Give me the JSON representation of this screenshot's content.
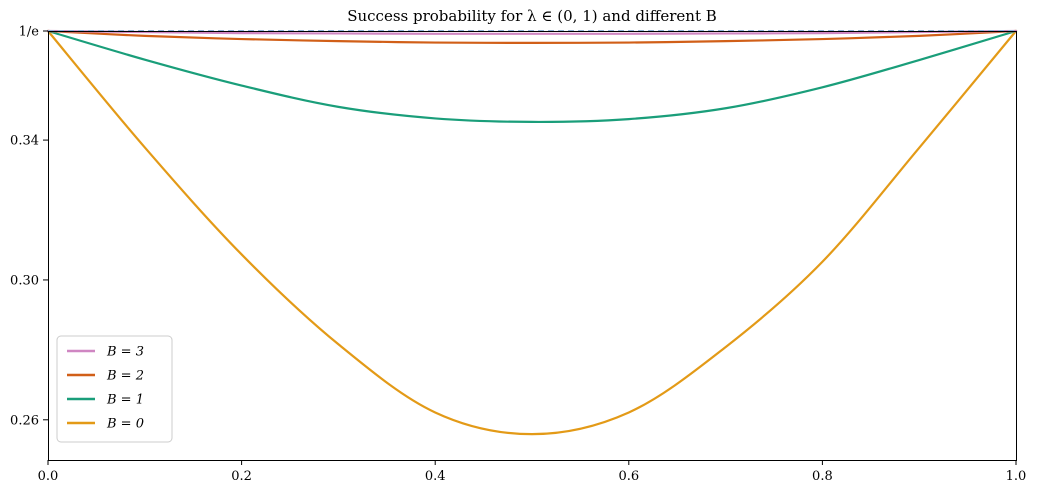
{
  "chart_data": {
    "type": "line",
    "title": "Success probability for λ ∈ (0, 1) and different B",
    "xlabel": "",
    "ylabel": "",
    "xlim": [
      0.0,
      1.0
    ],
    "ylim": [
      0.2452,
      0.3679
    ],
    "x_ticks": [
      {
        "value": 0.0,
        "label": "0.0"
      },
      {
        "value": 0.2,
        "label": "0.2"
      },
      {
        "value": 0.4,
        "label": "0.4"
      },
      {
        "value": 0.6,
        "label": "0.6"
      },
      {
        "value": 0.8,
        "label": "0.8"
      },
      {
        "value": 1.0,
        "label": "1.0"
      }
    ],
    "y_ticks": [
      {
        "value": 0.2567,
        "label": "0.26"
      },
      {
        "value": 0.2967,
        "label": "0.30"
      },
      {
        "value": 0.3367,
        "label": "0.34"
      },
      {
        "value": 0.3679,
        "label": "1/e"
      }
    ],
    "grid": false,
    "legend_position": "lower-left",
    "reference_line": {
      "y": 0.3679,
      "color": "#8fb3d9",
      "style": "dashed"
    },
    "series": [
      {
        "name": "B = 3",
        "color": "#cf86c2",
        "x": [
          0,
          0.1,
          0.2,
          0.3,
          0.4,
          0.5,
          0.6,
          0.7,
          0.8,
          0.9,
          1.0
        ],
        "values": [
          0.3679,
          0.3676,
          0.3673,
          0.3672,
          0.3671,
          0.3671,
          0.3671,
          0.3672,
          0.3673,
          0.3676,
          0.3679
        ]
      },
      {
        "name": "B = 2",
        "color": "#d15f18",
        "x": [
          0,
          0.1,
          0.2,
          0.3,
          0.4,
          0.5,
          0.6,
          0.7,
          0.8,
          0.9,
          1.0
        ],
        "values": [
          0.3679,
          0.3665,
          0.3656,
          0.365,
          0.3646,
          0.3645,
          0.3646,
          0.365,
          0.3656,
          0.3665,
          0.3679
        ]
      },
      {
        "name": "B = 1",
        "color": "#1a9e7a",
        "x": [
          0,
          0.1,
          0.2,
          0.3,
          0.4,
          0.5,
          0.6,
          0.7,
          0.8,
          0.9,
          1.0
        ],
        "values": [
          0.3679,
          0.3597,
          0.3523,
          0.3462,
          0.3429,
          0.3419,
          0.3427,
          0.3458,
          0.3518,
          0.3596,
          0.3679
        ]
      },
      {
        "name": "B = 0",
        "color": "#e39a17",
        "x": [
          0,
          0.1,
          0.2,
          0.3,
          0.4,
          0.5,
          0.6,
          0.7,
          0.8,
          0.9,
          1.0
        ],
        "values": [
          0.3679,
          0.3346,
          0.304,
          0.2783,
          0.2588,
          0.2526,
          0.2588,
          0.2775,
          0.3019,
          0.3345,
          0.3679
        ]
      }
    ]
  }
}
